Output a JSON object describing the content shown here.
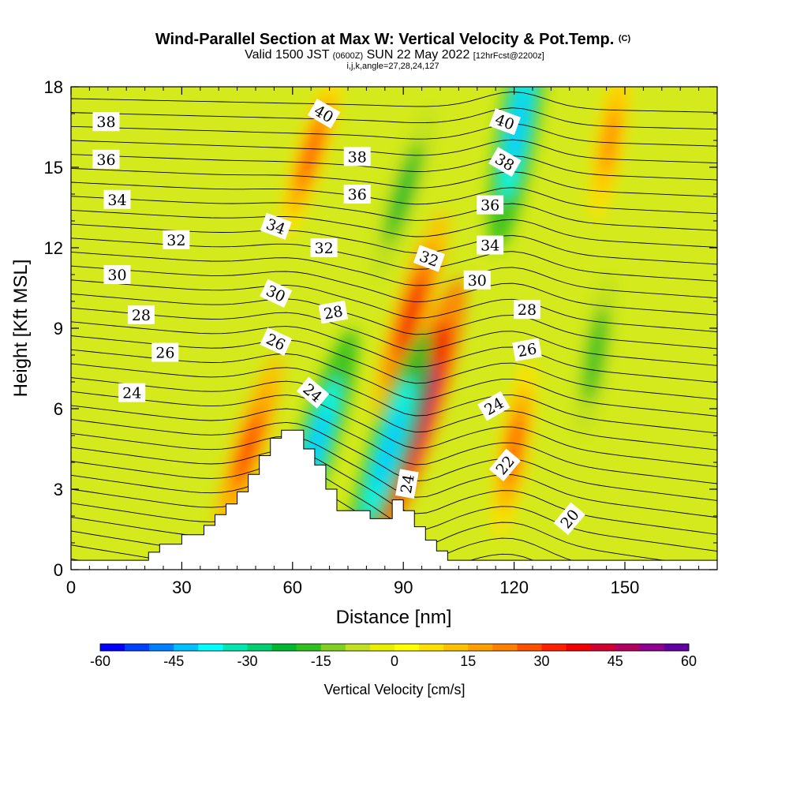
{
  "chart_data": {
    "type": "heatmap",
    "title": "Wind-Parallel Section at Max W: Vertical Velocity & Pot.Temp.",
    "title_mark": "(C)",
    "subtitle_valid": "Valid 1500 JST",
    "subtitle_utc": "(0600Z)",
    "subtitle_date": "SUN 22 May 2022",
    "subtitle_fcst": "[12hrFcst@2200z]",
    "subtitle_ijk": "i,j,k,angle=27,28,24,127",
    "xlabel": "Distance [nm]",
    "ylabel": "Height [Kft MSL]",
    "xlim": [
      0,
      175
    ],
    "ylim": [
      0,
      18
    ],
    "x_ticks": [
      "0",
      "30",
      "60",
      "90",
      "120",
      "150"
    ],
    "x_tick_values": [
      0,
      30,
      60,
      90,
      120,
      150
    ],
    "y_ticks": [
      "0",
      "3",
      "6",
      "9",
      "12",
      "15",
      "18"
    ],
    "y_tick_values": [
      0,
      3,
      6,
      9,
      12,
      15,
      18
    ],
    "colorbar": {
      "label": "Vertical Velocity [cm/s]",
      "ticks": [
        "-60",
        "-45",
        "-30",
        "-15",
        "0",
        "15",
        "30",
        "45",
        "60"
      ],
      "tick_values": [
        -60,
        -45,
        -30,
        -15,
        0,
        15,
        30,
        45,
        60
      ],
      "colors": [
        "#0000ff",
        "#0040ff",
        "#0080ff",
        "#00c0ff",
        "#00ffff",
        "#00e8b0",
        "#00d070",
        "#00b830",
        "#30c020",
        "#80d020",
        "#c0e020",
        "#e8f000",
        "#ffff00",
        "#ffe000",
        "#ffc000",
        "#ffa000",
        "#ff8000",
        "#ff5000",
        "#ff2000",
        "#f00000",
        "#d00030",
        "#b00060",
        "#900090",
        "#6000a0"
      ]
    },
    "terrain_profile": {
      "x": [
        0,
        18,
        21,
        24,
        30,
        36,
        39,
        42,
        45,
        48,
        51,
        54,
        57,
        60,
        63,
        66,
        69,
        72,
        78,
        81,
        87,
        90,
        93,
        96,
        99,
        102,
        105
      ],
      "height": [
        0.35,
        0.35,
        0.65,
        0.95,
        1.3,
        1.65,
        2.05,
        2.45,
        2.9,
        3.55,
        4.25,
        4.9,
        5.2,
        5.2,
        4.5,
        3.9,
        3.0,
        2.2,
        2.2,
        1.9,
        2.6,
        2.2,
        1.6,
        1.1,
        0.7,
        0.35,
        0.35
      ]
    },
    "velocity_features": [
      {
        "name": "lee-updraft-core",
        "x": 93,
        "height": 5.5,
        "w": 60
      },
      {
        "name": "updraft-plume",
        "x": 92,
        "height": 9.5,
        "w": 35
      },
      {
        "name": "west-slope-updraft",
        "x": 48,
        "height": 4.5,
        "w": 30
      },
      {
        "name": "leeside-downdraft",
        "x": 66,
        "height": 4.5,
        "w": -45
      },
      {
        "name": "valley-downdraft",
        "x": 86,
        "height": 4.5,
        "w": -45
      },
      {
        "name": "upper-downdraft",
        "x": 121,
        "height": 16.5,
        "w": -45
      },
      {
        "name": "upper-updraft",
        "x": 65,
        "height": 15.5,
        "w": 25
      },
      {
        "name": "east-updraft",
        "x": 120,
        "height": 4.5,
        "w": 25
      },
      {
        "name": "east-downdraft",
        "x": 142,
        "height": 8,
        "w": -20
      },
      {
        "name": "tilted-downdraft",
        "x": 90,
        "height": 14,
        "w": -25
      },
      {
        "name": "upper-east-updraft",
        "x": 146,
        "height": 16,
        "w": 20
      }
    ],
    "contour_labels": [
      {
        "text": "38",
        "x": 9.5,
        "height": 16.7,
        "angle": 0
      },
      {
        "text": "36",
        "x": 9.5,
        "height": 15.3,
        "angle": 0
      },
      {
        "text": "34",
        "x": 12.5,
        "height": 13.8,
        "angle": 0
      },
      {
        "text": "32",
        "x": 28.5,
        "height": 12.3,
        "angle": 0
      },
      {
        "text": "30",
        "x": 12.5,
        "height": 11.0,
        "angle": 0
      },
      {
        "text": "28",
        "x": 19,
        "height": 9.5,
        "angle": 0
      },
      {
        "text": "26",
        "x": 25.5,
        "height": 8.1,
        "angle": 0
      },
      {
        "text": "24",
        "x": 16.5,
        "height": 6.6,
        "angle": 0
      },
      {
        "text": "40",
        "x": 68.5,
        "height": 17.0,
        "angle": 30
      },
      {
        "text": "38",
        "x": 77.5,
        "height": 15.4,
        "angle": 0
      },
      {
        "text": "36",
        "x": 77.5,
        "height": 14.0,
        "angle": 0
      },
      {
        "text": "34",
        "x": 55.5,
        "height": 12.8,
        "angle": 20
      },
      {
        "text": "32",
        "x": 68.5,
        "height": 12.0,
        "angle": 0
      },
      {
        "text": "30",
        "x": 55.5,
        "height": 10.3,
        "angle": 25
      },
      {
        "text": "28",
        "x": 71,
        "height": 9.6,
        "angle": -10
      },
      {
        "text": "26",
        "x": 55.5,
        "height": 8.5,
        "angle": 25
      },
      {
        "text": "24",
        "x": 65.5,
        "height": 6.6,
        "angle": 40
      },
      {
        "text": "40",
        "x": 117.5,
        "height": 16.7,
        "angle": 20
      },
      {
        "text": "38",
        "x": 117.5,
        "height": 15.2,
        "angle": 30
      },
      {
        "text": "36",
        "x": 113.5,
        "height": 13.6,
        "angle": 0
      },
      {
        "text": "34",
        "x": 113.5,
        "height": 12.1,
        "angle": 0
      },
      {
        "text": "32",
        "x": 97,
        "height": 11.6,
        "angle": 20
      },
      {
        "text": "30",
        "x": 110,
        "height": 10.8,
        "angle": 0
      },
      {
        "text": "28",
        "x": 123.5,
        "height": 9.7,
        "angle": 0
      },
      {
        "text": "26",
        "x": 123.5,
        "height": 8.2,
        "angle": -10
      },
      {
        "text": "24",
        "x": 114.5,
        "height": 6.1,
        "angle": -30
      },
      {
        "text": "22",
        "x": 117.5,
        "height": 3.9,
        "angle": -50
      },
      {
        "text": "24",
        "x": 91,
        "height": 3.2,
        "angle": -80
      },
      {
        "text": "20",
        "x": 135,
        "height": 1.9,
        "angle": -50
      }
    ]
  }
}
